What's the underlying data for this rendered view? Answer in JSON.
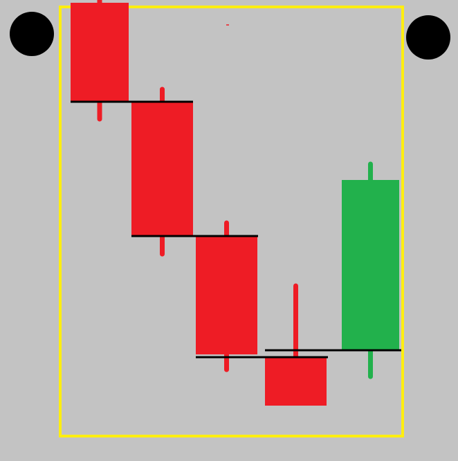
{
  "title": "",
  "colors": {
    "background": "#c3c3c3",
    "frame": "#ffee10",
    "bearish": "#ee1c25",
    "bullish": "#22b14c",
    "level_line": "#000000",
    "dot": "#000000"
  },
  "chart_data": {
    "type": "candlestick",
    "title": "",
    "xlabel": "",
    "ylabel": "",
    "axes_visible": false,
    "grid": false,
    "legend": "none",
    "price_range": [
      0,
      640
    ],
    "candles": [
      {
        "index": 1,
        "open": 624,
        "close": 481,
        "high": 643,
        "low": 456,
        "direction": "bearish"
      },
      {
        "index": 2,
        "open": 481,
        "close": 287,
        "high": 499,
        "low": 261,
        "direction": "bearish"
      },
      {
        "index": 3,
        "open": 287,
        "close": 116,
        "high": 306,
        "low": 94,
        "direction": "bearish"
      },
      {
        "index": 4,
        "open": 112,
        "close": 42,
        "high": 215,
        "low": 42,
        "direction": "bearish"
      },
      {
        "index": 5,
        "open": 122,
        "close": 368,
        "high": 391,
        "low": 84,
        "direction": "bullish"
      }
    ],
    "close_levels": [
      {
        "from_candle": 1,
        "to_candle": 2,
        "price": 481
      },
      {
        "from_candle": 2,
        "to_candle": 3,
        "price": 287
      },
      {
        "from_candle": 3,
        "to_candle": 4,
        "price": 112
      },
      {
        "from_candle": 4,
        "to_candle": 5,
        "price": 122
      }
    ],
    "corner_markers": [
      "top-left",
      "top-right"
    ]
  }
}
